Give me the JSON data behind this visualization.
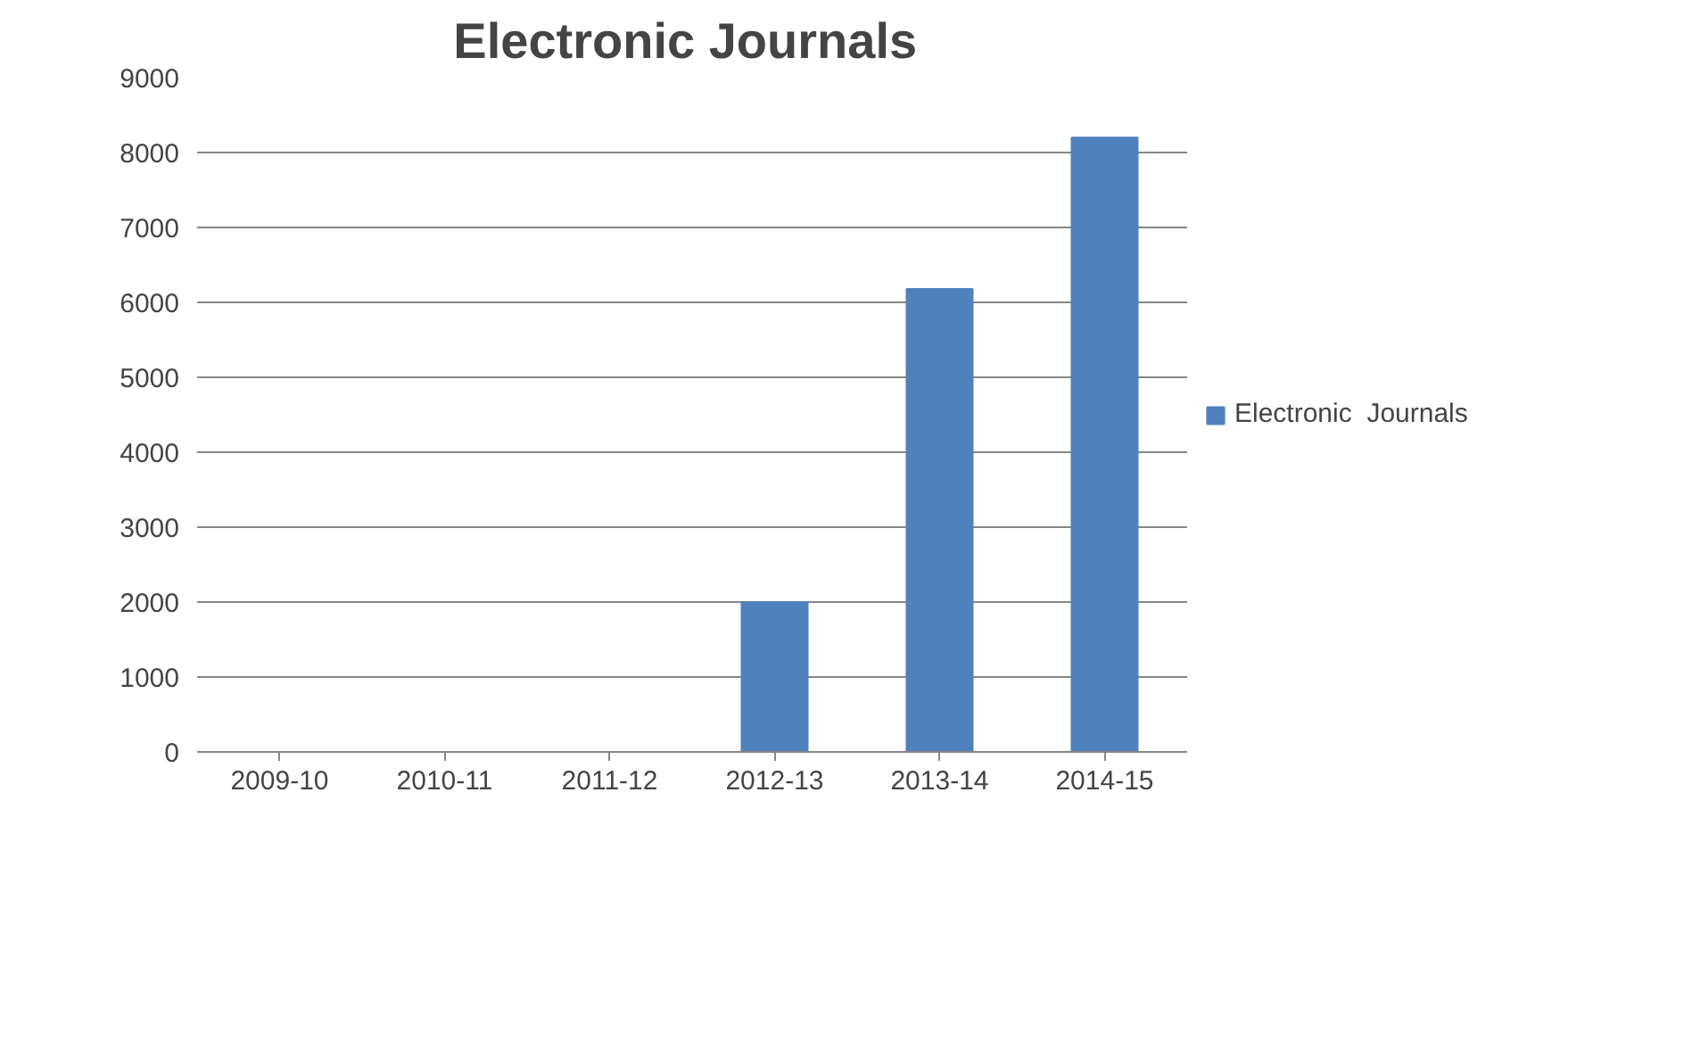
{
  "chart_data": {
    "type": "bar",
    "title": "Electronic  Journals",
    "categories": [
      "2009-10",
      "2010-11",
      "2011-12",
      "2012-13",
      "2013-14",
      "2014-15"
    ],
    "series": [
      {
        "name": "Electronic  Journals",
        "color": "#4f81bd",
        "values": [
          null,
          null,
          null,
          2000,
          6180,
          8200
        ]
      }
    ],
    "ylim": [
      0,
      9000
    ],
    "yticks": [
      0,
      1000,
      2000,
      3000,
      4000,
      5000,
      6000,
      7000,
      8000,
      9000
    ],
    "grid": "y",
    "legend": "right"
  }
}
